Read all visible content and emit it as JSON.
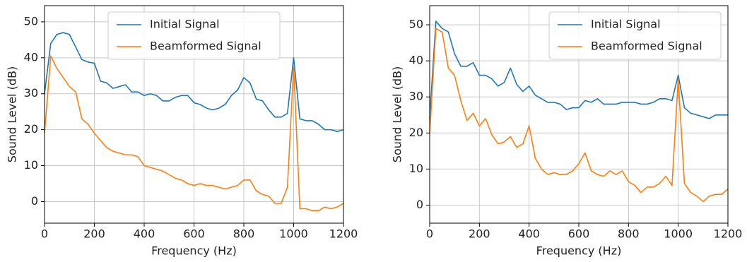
{
  "chart_data": [
    {
      "type": "line",
      "xlabel": "Frequency (Hz)",
      "ylabel": "Sound Level (dB)",
      "x": [
        0,
        25,
        50,
        75,
        100,
        125,
        150,
        175,
        200,
        225,
        250,
        275,
        300,
        325,
        350,
        375,
        400,
        425,
        450,
        475,
        500,
        525,
        550,
        575,
        600,
        625,
        650,
        675,
        700,
        725,
        750,
        775,
        800,
        825,
        850,
        875,
        900,
        925,
        950,
        975,
        1000,
        1025,
        1050,
        1075,
        1100,
        1125,
        1150,
        1175,
        1200
      ],
      "series": [
        {
          "name": "Initial Signal",
          "color": "#1f77b4",
          "values": [
            30,
            44,
            46.5,
            47,
            46.5,
            43,
            39.5,
            38.8,
            38.5,
            33.5,
            33,
            31.5,
            32,
            32.5,
            30.5,
            30.5,
            29.5,
            30,
            29.5,
            28,
            28,
            29,
            29.5,
            29.5,
            27.5,
            27,
            26,
            25.5,
            26,
            27,
            29.5,
            31,
            34.5,
            33,
            28.5,
            28,
            25.5,
            23.5,
            23.5,
            24.5,
            40,
            23,
            22.5,
            22.5,
            21.5,
            20,
            20,
            19.5,
            20
          ]
        },
        {
          "name": "Beamformed Signal",
          "color": "#ff7f0e",
          "values": [
            19,
            40.5,
            37,
            34.5,
            32,
            30.5,
            23,
            21.5,
            19,
            17,
            15,
            14,
            13.5,
            13,
            13,
            12.5,
            10,
            9.5,
            9,
            8.5,
            7.5,
            6.5,
            6,
            5,
            4.5,
            5,
            4.5,
            4.5,
            4,
            3.5,
            4,
            4.5,
            6,
            6,
            3,
            2,
            1.5,
            -0.5,
            -0.5,
            4,
            37.5,
            -2,
            -2,
            -2.5,
            -2.5,
            -1.5,
            -2,
            -1.5,
            -0.5
          ]
        }
      ],
      "xlim": [
        0,
        1200
      ],
      "xticks": [
        0,
        200,
        400,
        600,
        800,
        1000,
        1200
      ],
      "ylim": [
        -6,
        54.5
      ],
      "yticks": [
        0,
        10,
        20,
        30,
        40,
        50
      ],
      "grid": true,
      "legend": "upper center"
    },
    {
      "type": "line",
      "xlabel": "Frequency (Hz)",
      "ylabel": "Sound Level (dB)",
      "x": [
        0,
        25,
        50,
        75,
        100,
        125,
        150,
        175,
        200,
        225,
        250,
        275,
        300,
        325,
        350,
        375,
        400,
        425,
        450,
        475,
        500,
        525,
        550,
        575,
        600,
        625,
        650,
        675,
        700,
        725,
        750,
        775,
        800,
        825,
        850,
        875,
        900,
        925,
        950,
        975,
        1000,
        1025,
        1050,
        1075,
        1100,
        1125,
        1150,
        1175,
        1200
      ],
      "series": [
        {
          "name": "Initial Signal",
          "color": "#1f77b4",
          "values": [
            24,
            51,
            49,
            48,
            42,
            38.5,
            38.5,
            39.5,
            36,
            36,
            35,
            33,
            34,
            38,
            33.5,
            31.5,
            33,
            30.5,
            29.5,
            28.5,
            28.5,
            28,
            26.5,
            27,
            27,
            29,
            28.5,
            29.5,
            28,
            28,
            28,
            28.5,
            28.5,
            28.5,
            28,
            28,
            28.5,
            29.5,
            29.5,
            29,
            36,
            27,
            25.5,
            25,
            24.5,
            24,
            25,
            25,
            25
          ]
        },
        {
          "name": "Beamformed Signal",
          "color": "#ff7f0e",
          "values": [
            20,
            49,
            48,
            38,
            36,
            29,
            23.5,
            25.5,
            22,
            24,
            19.5,
            17,
            17.5,
            19,
            16,
            17,
            22,
            13,
            10,
            8.5,
            9,
            8.5,
            8.5,
            9.5,
            11.5,
            14.5,
            9.5,
            8.5,
            8,
            9.5,
            8.5,
            9.5,
            6.5,
            5.5,
            3.5,
            5,
            5,
            6,
            8,
            5.5,
            35,
            6,
            3.5,
            2.5,
            1,
            2.5,
            3,
            3,
            4.5
          ]
        }
      ],
      "xlim": [
        0,
        1200
      ],
      "xticks": [
        0,
        200,
        400,
        600,
        800,
        1000,
        1200
      ],
      "ylim": [
        -5,
        55.3
      ],
      "yticks": [
        0,
        10,
        20,
        30,
        40,
        50
      ],
      "grid": true,
      "legend": "upper right"
    }
  ]
}
